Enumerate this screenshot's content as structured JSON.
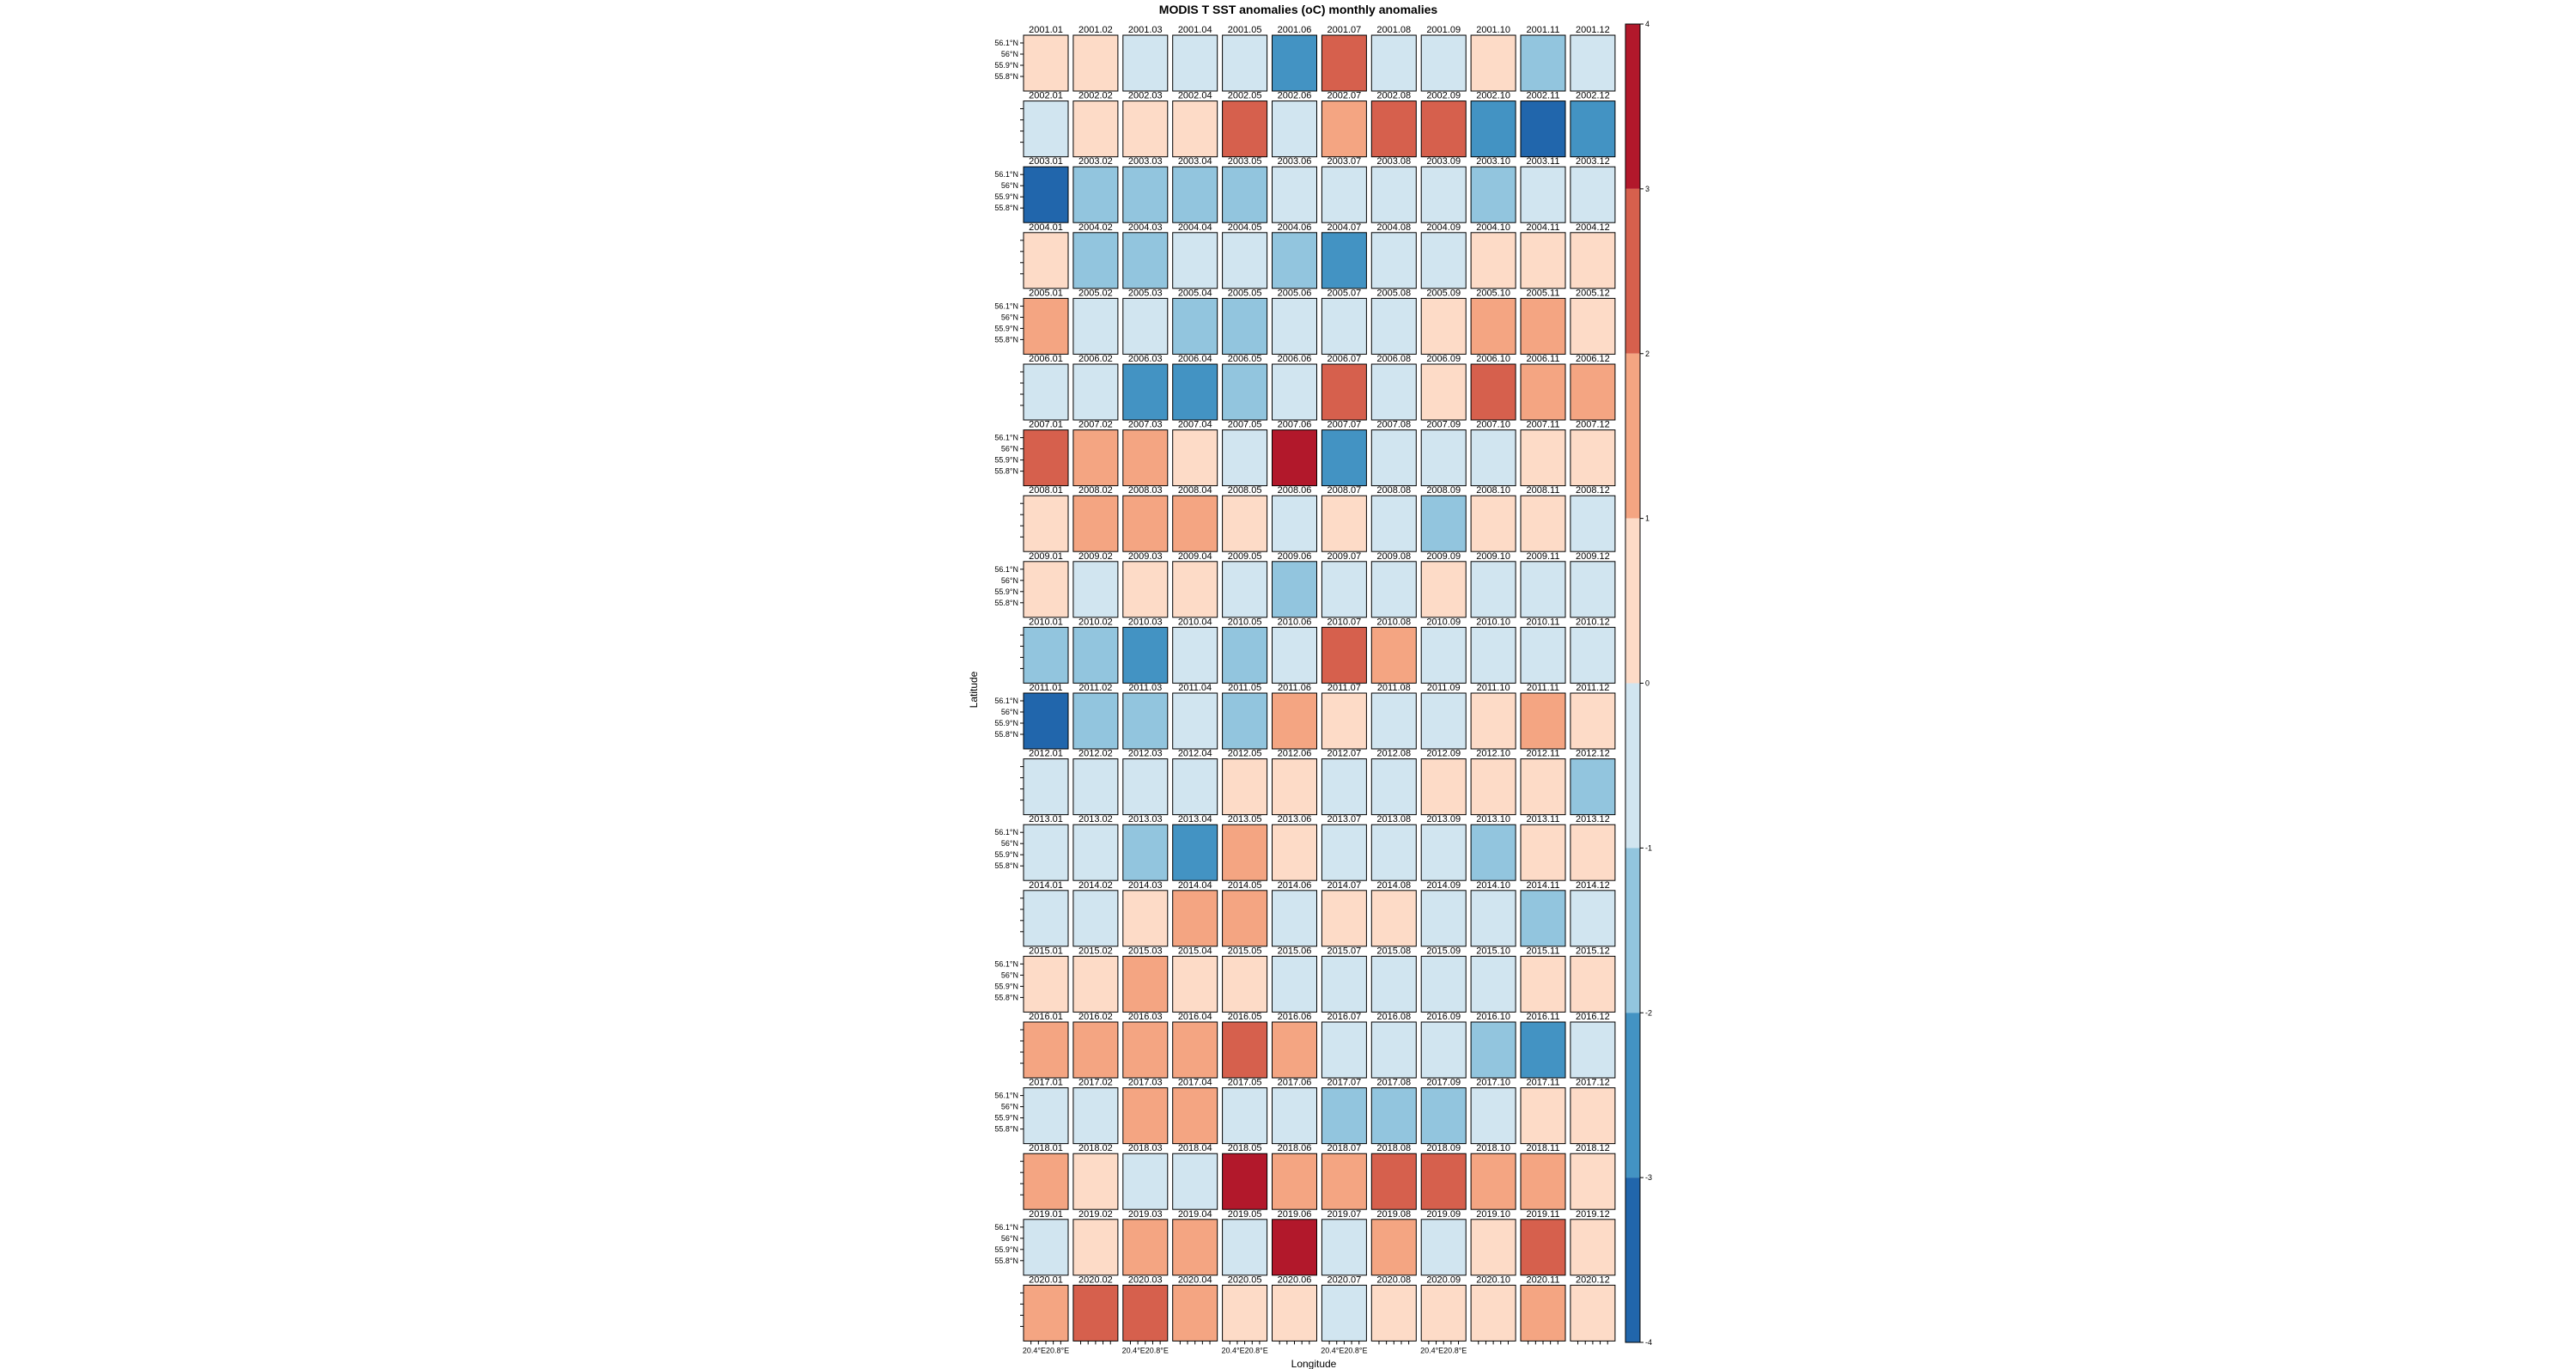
{
  "chart_data": {
    "type": "heatmap",
    "title": "MODIS T SST anomalies (oC) monthly anomalies",
    "xlabel": "Longitude",
    "ylabel": "Latitude",
    "years": [
      2001,
      2002,
      2003,
      2004,
      2005,
      2006,
      2007,
      2008,
      2009,
      2010,
      2011,
      2012,
      2013,
      2014,
      2015,
      2016,
      2017,
      2018,
      2019,
      2020
    ],
    "months": [
      "01",
      "02",
      "03",
      "04",
      "05",
      "06",
      "07",
      "08",
      "09",
      "10",
      "11",
      "12"
    ],
    "lat_tick_labels": [
      "56.1°N",
      "56°N",
      "55.9°N",
      "55.8°N"
    ],
    "lon_tick_labels": [
      "20.4°E",
      "20.8°E"
    ],
    "colorbar": {
      "ticks": [
        4,
        3,
        2,
        1,
        0,
        -1,
        -2,
        -3,
        -4
      ],
      "bins": [
        {
          "range": [
            3,
            4
          ],
          "color": "#b2182b"
        },
        {
          "range": [
            2,
            3
          ],
          "color": "#d6604d"
        },
        {
          "range": [
            1,
            2
          ],
          "color": "#f4a582"
        },
        {
          "range": [
            0,
            1
          ],
          "color": "#fddbc7"
        },
        {
          "range": [
            -1,
            0
          ],
          "color": "#d1e5f0"
        },
        {
          "range": [
            -2,
            -1
          ],
          "color": "#92c5de"
        },
        {
          "range": [
            -3,
            -2
          ],
          "color": "#4393c3"
        },
        {
          "range": [
            -4,
            -3
          ],
          "color": "#2166ac"
        }
      ]
    },
    "monthly_mean_anomaly": [
      [
        0.5,
        0.5,
        -0.5,
        -0.5,
        -0.5,
        -2.5,
        2.5,
        -0.5,
        -0.5,
        0.5,
        -1.5,
        -0.5
      ],
      [
        -0.5,
        0.5,
        0.5,
        0.5,
        2.5,
        -0.5,
        1.5,
        2.5,
        2.5,
        -2.5,
        -3.5,
        -2.5
      ],
      [
        -3.5,
        -1.5,
        -1.5,
        -1.5,
        -1.5,
        -0.5,
        -0.5,
        -0.5,
        -0.5,
        -1.5,
        -0.5,
        -0.5
      ],
      [
        0.5,
        -1.5,
        -1.5,
        -0.5,
        -0.5,
        -1.5,
        -2.5,
        -0.5,
        -0.5,
        0.5,
        0.5,
        0.5
      ],
      [
        1.5,
        -0.5,
        -0.5,
        -1.5,
        -1.5,
        -0.5,
        -0.5,
        -0.5,
        0.5,
        1.5,
        1.5,
        0.5
      ],
      [
        -0.5,
        -0.5,
        -2.5,
        -2.5,
        -1.5,
        -0.5,
        2.5,
        -0.5,
        0.5,
        2.5,
        1.5,
        1.5
      ],
      [
        2.5,
        1.5,
        1.5,
        0.5,
        -0.5,
        3.5,
        -2.5,
        -0.5,
        -0.5,
        -0.5,
        0.5,
        0.5
      ],
      [
        0.5,
        1.5,
        1.5,
        1.5,
        0.5,
        -0.5,
        0.5,
        -0.5,
        -1.5,
        0.5,
        0.5,
        -0.5
      ],
      [
        0.5,
        -0.5,
        0.5,
        0.5,
        -0.5,
        -1.5,
        -0.5,
        -0.5,
        0.5,
        -0.5,
        -0.5,
        -0.5
      ],
      [
        -1.5,
        -1.5,
        -2.5,
        -0.5,
        -1.5,
        -0.5,
        2.5,
        1.5,
        -0.5,
        -0.5,
        -0.5,
        -0.5
      ],
      [
        -3.5,
        -1.5,
        -1.5,
        -0.5,
        -1.5,
        1.5,
        0.5,
        -0.5,
        -0.5,
        0.5,
        1.5,
        0.5
      ],
      [
        -0.5,
        -0.5,
        -0.5,
        -0.5,
        0.5,
        0.5,
        -0.5,
        -0.5,
        0.5,
        0.5,
        0.5,
        -1.5
      ],
      [
        -0.5,
        -0.5,
        -1.5,
        -2.5,
        1.5,
        0.5,
        -0.5,
        -0.5,
        -0.5,
        -1.5,
        0.5,
        0.5
      ],
      [
        -0.5,
        -0.5,
        0.5,
        1.5,
        1.5,
        -0.5,
        0.5,
        0.5,
        -0.5,
        -0.5,
        -1.5,
        -0.5
      ],
      [
        0.5,
        0.5,
        1.5,
        0.5,
        0.5,
        -0.5,
        -0.5,
        -0.5,
        -0.5,
        -0.5,
        0.5,
        0.5
      ],
      [
        1.5,
        1.5,
        1.5,
        1.5,
        2.5,
        1.5,
        -0.5,
        -0.5,
        -0.5,
        -1.5,
        -2.5,
        -0.5
      ],
      [
        -0.5,
        -0.5,
        1.5,
        1.5,
        -0.5,
        -0.5,
        -1.5,
        -1.5,
        -1.5,
        -0.5,
        0.5,
        0.5
      ],
      [
        1.5,
        0.5,
        -0.5,
        -0.5,
        3.5,
        1.5,
        1.5,
        2.5,
        2.5,
        1.5,
        1.5,
        0.5
      ],
      [
        -0.5,
        0.5,
        1.5,
        1.5,
        -0.5,
        3.5,
        -0.5,
        1.5,
        -0.5,
        0.5,
        2.5,
        0.5
      ],
      [
        1.5,
        2.5,
        2.5,
        1.5,
        0.5,
        0.5,
        -0.5,
        0.5,
        0.5,
        0.5,
        1.5,
        0.5
      ]
    ]
  }
}
